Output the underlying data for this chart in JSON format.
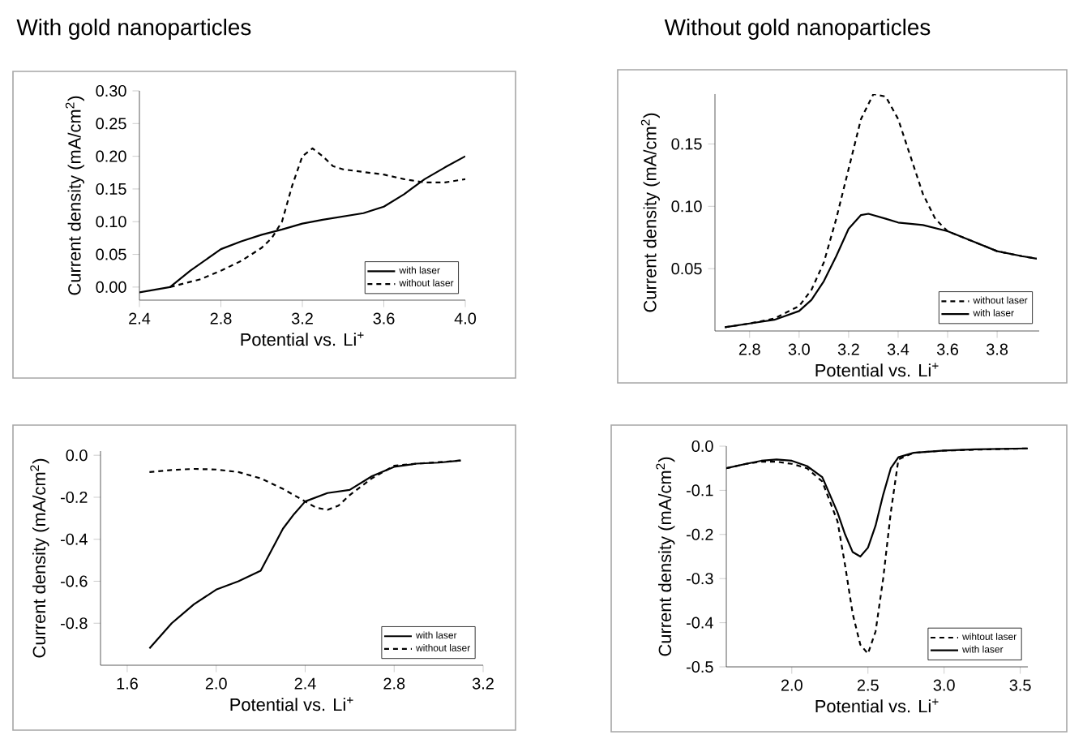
{
  "chart_data": [
    {
      "type": "line",
      "title": "With gold nanoparticles",
      "xlabel": "Potential vs. Li$^{+}$",
      "ylabel": "Current density (mA/cm$^{2}$)",
      "xlim": [
        2.4,
        4.0
      ],
      "ylim": [
        -0.02,
        0.3
      ],
      "xticks": [
        2.4,
        2.8,
        3.2,
        3.6,
        {
          "value": 4.0,
          "label": "4.0"
        }
      ],
      "yticks": [
        {
          "value": 0.0,
          "label": "0.00"
        },
        0.05,
        {
          "value": 0.1,
          "label": "0.10"
        },
        0.15,
        {
          "value": 0.2,
          "label": "0.20"
        },
        0.25,
        {
          "value": 0.3,
          "label": "0.30"
        }
      ],
      "legend": "bottom right",
      "series": [
        {
          "name": "with laser",
          "color": "#000000",
          "line_style": "solid",
          "x": [
            2.4,
            2.55,
            2.65,
            2.8,
            2.9,
            3.0,
            3.1,
            3.2,
            3.3,
            3.4,
            3.5,
            3.6,
            3.7,
            3.8,
            3.9,
            4.0
          ],
          "values": [
            -0.008,
            0.0,
            0.025,
            0.058,
            0.07,
            0.08,
            0.088,
            0.097,
            0.103,
            0.108,
            0.113,
            0.123,
            0.142,
            0.165,
            0.183,
            0.2
          ]
        },
        {
          "name": "without laser",
          "color": "#000000",
          "line_style": "dashed",
          "x": [
            2.55,
            2.7,
            2.8,
            2.9,
            3.0,
            3.05,
            3.1,
            3.15,
            3.2,
            3.25,
            3.3,
            3.35,
            3.4,
            3.5,
            3.6,
            3.7,
            3.8,
            3.9,
            4.0
          ],
          "values": [
            0.0,
            0.012,
            0.025,
            0.04,
            0.06,
            0.075,
            0.1,
            0.155,
            0.2,
            0.212,
            0.2,
            0.185,
            0.18,
            0.176,
            0.172,
            0.165,
            0.16,
            0.16,
            0.165
          ]
        }
      ]
    },
    {
      "type": "line",
      "title": "Without gold nanoparticles",
      "xlabel": "Potential vs. Li$^{+}$",
      "ylabel": "Current density (mA/cm$^{2}$)",
      "xlim": [
        2.66,
        3.97
      ],
      "ylim": [
        0.0,
        0.19
      ],
      "xticks": [
        2.8,
        {
          "value": 3.0,
          "label": "3.0"
        },
        3.2,
        3.4,
        3.6,
        3.8
      ],
      "yticks": [
        0.05,
        {
          "value": 0.1,
          "label": "0.10"
        },
        0.15
      ],
      "legend": "bottom right",
      "series": [
        {
          "name": "without laser",
          "color": "#000000",
          "line_style": "dashed",
          "x": [
            2.7,
            2.8,
            2.9,
            3.0,
            3.05,
            3.1,
            3.15,
            3.2,
            3.25,
            3.3,
            3.35,
            3.4,
            3.45,
            3.5,
            3.55,
            3.6,
            3.7,
            3.8,
            3.9,
            3.96
          ],
          "values": [
            0.003,
            0.006,
            0.01,
            0.02,
            0.033,
            0.055,
            0.09,
            0.13,
            0.17,
            0.19,
            0.188,
            0.17,
            0.14,
            0.11,
            0.09,
            0.08,
            0.072,
            0.064,
            0.06,
            0.058
          ]
        },
        {
          "name": "with laser",
          "color": "#000000",
          "line_style": "solid",
          "x": [
            2.7,
            2.8,
            2.9,
            3.0,
            3.05,
            3.1,
            3.15,
            3.2,
            3.25,
            3.28,
            3.35,
            3.4,
            3.5,
            3.6,
            3.7,
            3.8,
            3.9,
            3.96
          ],
          "values": [
            0.003,
            0.006,
            0.009,
            0.016,
            0.025,
            0.04,
            0.06,
            0.082,
            0.093,
            0.094,
            0.09,
            0.087,
            0.085,
            0.08,
            0.072,
            0.064,
            0.06,
            0.058
          ]
        }
      ]
    },
    {
      "type": "line",
      "xlabel": "Potential vs. Li$^{+}$",
      "ylabel": "Current density (mA/cm$^{2}$)",
      "xlim": [
        1.48,
        3.2
      ],
      "ylim": [
        -1.0,
        0.02
      ],
      "xticks": [
        1.6,
        {
          "value": 2.0,
          "label": "2.0"
        },
        2.4,
        2.8,
        3.2
      ],
      "yticks": [
        -0.8,
        -0.6,
        -0.4,
        -0.2,
        {
          "value": 0.0,
          "label": "0.0"
        }
      ],
      "legend": "bottom right",
      "series": [
        {
          "name": "with laser",
          "color": "#000000",
          "line_style": "solid",
          "x": [
            1.7,
            1.8,
            1.9,
            2.0,
            2.1,
            2.2,
            2.25,
            2.3,
            2.35,
            2.4,
            2.5,
            2.6,
            2.7,
            2.8,
            2.9,
            3.0,
            3.1
          ],
          "values": [
            -0.92,
            -0.8,
            -0.71,
            -0.64,
            -0.6,
            -0.55,
            -0.45,
            -0.35,
            -0.28,
            -0.22,
            -0.18,
            -0.165,
            -0.1,
            -0.055,
            -0.04,
            -0.035,
            -0.025
          ]
        },
        {
          "name": "without laser",
          "color": "#000000",
          "line_style": "dashed",
          "x": [
            1.7,
            1.8,
            1.9,
            2.0,
            2.1,
            2.2,
            2.3,
            2.4,
            2.45,
            2.5,
            2.55,
            2.6,
            2.7,
            2.8,
            2.9,
            3.0,
            3.1
          ],
          "values": [
            -0.08,
            -0.07,
            -0.065,
            -0.068,
            -0.08,
            -0.11,
            -0.16,
            -0.22,
            -0.25,
            -0.26,
            -0.24,
            -0.19,
            -0.11,
            -0.05,
            -0.04,
            -0.033,
            -0.025
          ]
        }
      ]
    },
    {
      "type": "line",
      "xlabel": "Potential vs. Li$^{+}$",
      "ylabel": "Current density (mA/cm$^{2}$)",
      "xlim": [
        1.57,
        3.55
      ],
      "ylim": [
        -0.5,
        0.0
      ],
      "xticks": [
        {
          "value": 2.0,
          "label": "2.0"
        },
        2.5,
        {
          "value": 3.0,
          "label": "3.0"
        },
        3.5
      ],
      "yticks": [
        -0.5,
        -0.4,
        -0.3,
        -0.2,
        -0.1,
        {
          "value": 0.0,
          "label": "0.0"
        }
      ],
      "legend": "bottom right",
      "series": [
        {
          "name": "wihtout laser",
          "color": "#000000",
          "line_style": "dashed",
          "x": [
            1.57,
            1.7,
            1.8,
            1.9,
            2.0,
            2.1,
            2.2,
            2.3,
            2.35,
            2.4,
            2.45,
            2.5,
            2.55,
            2.6,
            2.65,
            2.7,
            2.8,
            3.0,
            3.2,
            3.55
          ],
          "values": [
            -0.05,
            -0.04,
            -0.035,
            -0.035,
            -0.04,
            -0.05,
            -0.08,
            -0.17,
            -0.27,
            -0.38,
            -0.45,
            -0.47,
            -0.42,
            -0.3,
            -0.15,
            -0.03,
            -0.015,
            -0.01,
            -0.008,
            -0.005
          ]
        },
        {
          "name": "with laser",
          "color": "#000000",
          "line_style": "solid",
          "x": [
            1.57,
            1.7,
            1.8,
            1.9,
            2.0,
            2.1,
            2.2,
            2.3,
            2.35,
            2.4,
            2.45,
            2.5,
            2.55,
            2.6,
            2.65,
            2.7,
            2.8,
            3.0,
            3.2,
            3.55
          ],
          "values": [
            -0.05,
            -0.04,
            -0.033,
            -0.03,
            -0.033,
            -0.045,
            -0.07,
            -0.15,
            -0.2,
            -0.24,
            -0.25,
            -0.23,
            -0.18,
            -0.11,
            -0.05,
            -0.025,
            -0.015,
            -0.01,
            -0.007,
            -0.005
          ]
        }
      ]
    }
  ]
}
